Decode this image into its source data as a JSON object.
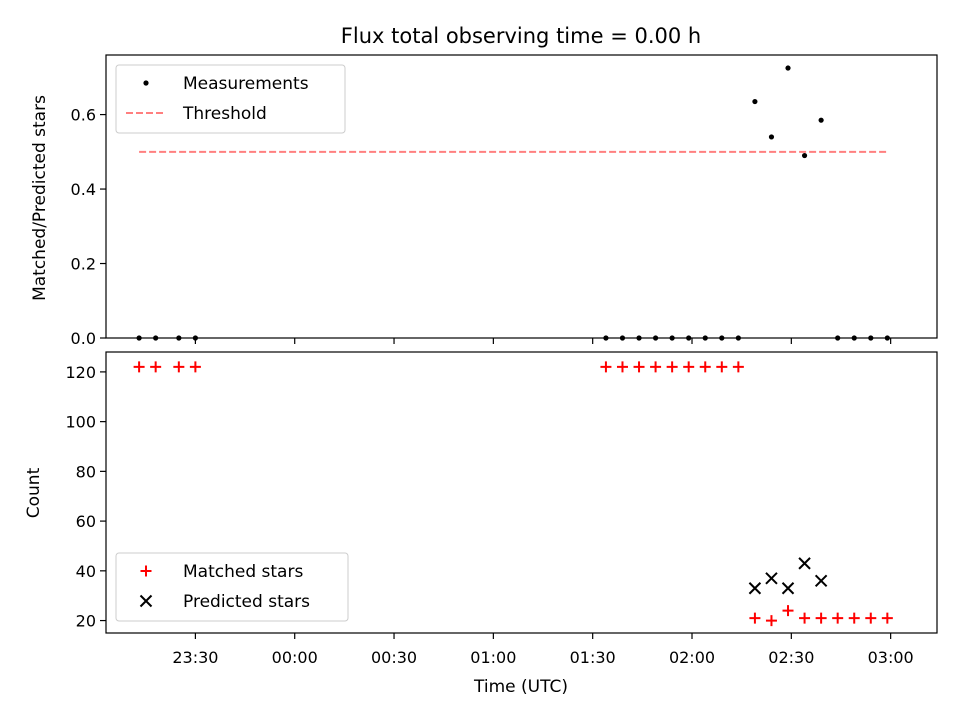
{
  "chart_data": [
    {
      "type": "scatter",
      "title": "Flux total observing time = 0.00 h",
      "xlabel": "",
      "ylabel": "Matched/Predicted stars",
      "ylim": [
        0,
        0.76
      ],
      "yticks": [
        0.0,
        0.2,
        0.4,
        0.6
      ],
      "ytick_labels": [
        "0.0",
        "0.2",
        "0.4",
        "0.6"
      ],
      "grid": false,
      "legend_position": "upper left",
      "series": [
        {
          "name": "Measurements",
          "marker": "dot",
          "color": "#000000",
          "points": [
            [
              "23:13",
              0
            ],
            [
              "23:18",
              0
            ],
            [
              "23:25",
              0
            ],
            [
              "23:30",
              0
            ],
            [
              "01:34",
              0
            ],
            [
              "01:39",
              0
            ],
            [
              "01:44",
              0
            ],
            [
              "01:49",
              0
            ],
            [
              "01:54",
              0
            ],
            [
              "01:59",
              0
            ],
            [
              "02:04",
              0
            ],
            [
              "02:09",
              0
            ],
            [
              "02:14",
              0
            ],
            [
              "02:19",
              0.635
            ],
            [
              "02:24",
              0.54
            ],
            [
              "02:29",
              0.725
            ],
            [
              "02:34",
              0.49
            ],
            [
              "02:39",
              0.585
            ],
            [
              "02:44",
              0
            ],
            [
              "02:49",
              0
            ],
            [
              "02:54",
              0
            ],
            [
              "02:59",
              0
            ]
          ]
        },
        {
          "name": "Threshold",
          "marker": "dashed-line",
          "color": "#ff7f7f",
          "points": [
            [
              "23:13",
              0.5
            ],
            [
              "02:59",
              0.5
            ]
          ]
        }
      ]
    },
    {
      "type": "scatter",
      "title": "",
      "xlabel": "Time (UTC)",
      "ylabel": "Count",
      "ylim": [
        15,
        128
      ],
      "yticks": [
        20,
        40,
        60,
        80,
        100,
        120
      ],
      "ytick_labels": [
        "20",
        "40",
        "60",
        "80",
        "100",
        "120"
      ],
      "xlim": [
        "23:03",
        "03:14"
      ],
      "xticks": [
        "23:30",
        "00:00",
        "00:30",
        "01:00",
        "01:30",
        "02:00",
        "02:30",
        "03:00"
      ],
      "xtick_labels": [
        "23:30",
        "00:00",
        "00:30",
        "01:00",
        "01:30",
        "02:00",
        "02:30",
        "03:00"
      ],
      "grid": false,
      "legend_position": "lower left",
      "series": [
        {
          "name": "Matched stars",
          "marker": "plus",
          "color": "#ff0000",
          "points": [
            [
              "23:13",
              122
            ],
            [
              "23:18",
              122
            ],
            [
              "23:25",
              122
            ],
            [
              "23:30",
              122
            ],
            [
              "01:34",
              122
            ],
            [
              "01:39",
              122
            ],
            [
              "01:44",
              122
            ],
            [
              "01:49",
              122
            ],
            [
              "01:54",
              122
            ],
            [
              "01:59",
              122
            ],
            [
              "02:04",
              122
            ],
            [
              "02:09",
              122
            ],
            [
              "02:14",
              122
            ],
            [
              "02:19",
              21
            ],
            [
              "02:24",
              20
            ],
            [
              "02:29",
              24
            ],
            [
              "02:34",
              21
            ],
            [
              "02:39",
              21
            ],
            [
              "02:44",
              21
            ],
            [
              "02:49",
              21
            ],
            [
              "02:54",
              21
            ],
            [
              "02:59",
              21
            ]
          ]
        },
        {
          "name": "Predicted stars",
          "marker": "x",
          "color": "#000000",
          "points": [
            [
              "02:19",
              33
            ],
            [
              "02:24",
              37
            ],
            [
              "02:29",
              33
            ],
            [
              "02:34",
              43
            ],
            [
              "02:39",
              36
            ]
          ]
        }
      ]
    }
  ]
}
